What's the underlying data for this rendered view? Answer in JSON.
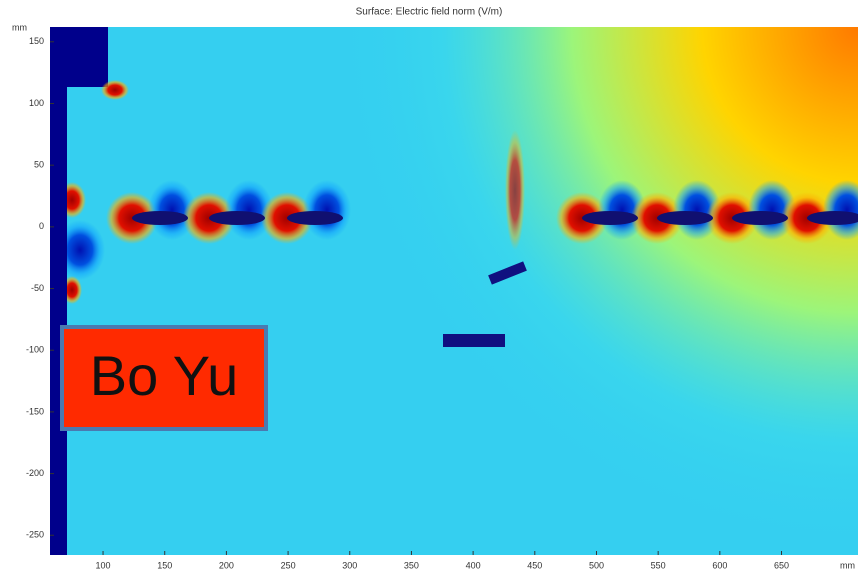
{
  "chart_data": {
    "type": "surface",
    "title": "Surface: Electric field norm (V/m)",
    "xlabel": "mm",
    "ylabel": "mm",
    "xlim": [
      57,
      712
    ],
    "ylim": [
      -266,
      162
    ],
    "xticks": [
      100,
      150,
      200,
      250,
      300,
      350,
      400,
      450,
      500,
      550,
      600,
      650
    ],
    "yticks": [
      150,
      100,
      50,
      0,
      -50,
      -100,
      -150,
      -200,
      -250
    ],
    "annotation": "Bo Yu"
  }
}
